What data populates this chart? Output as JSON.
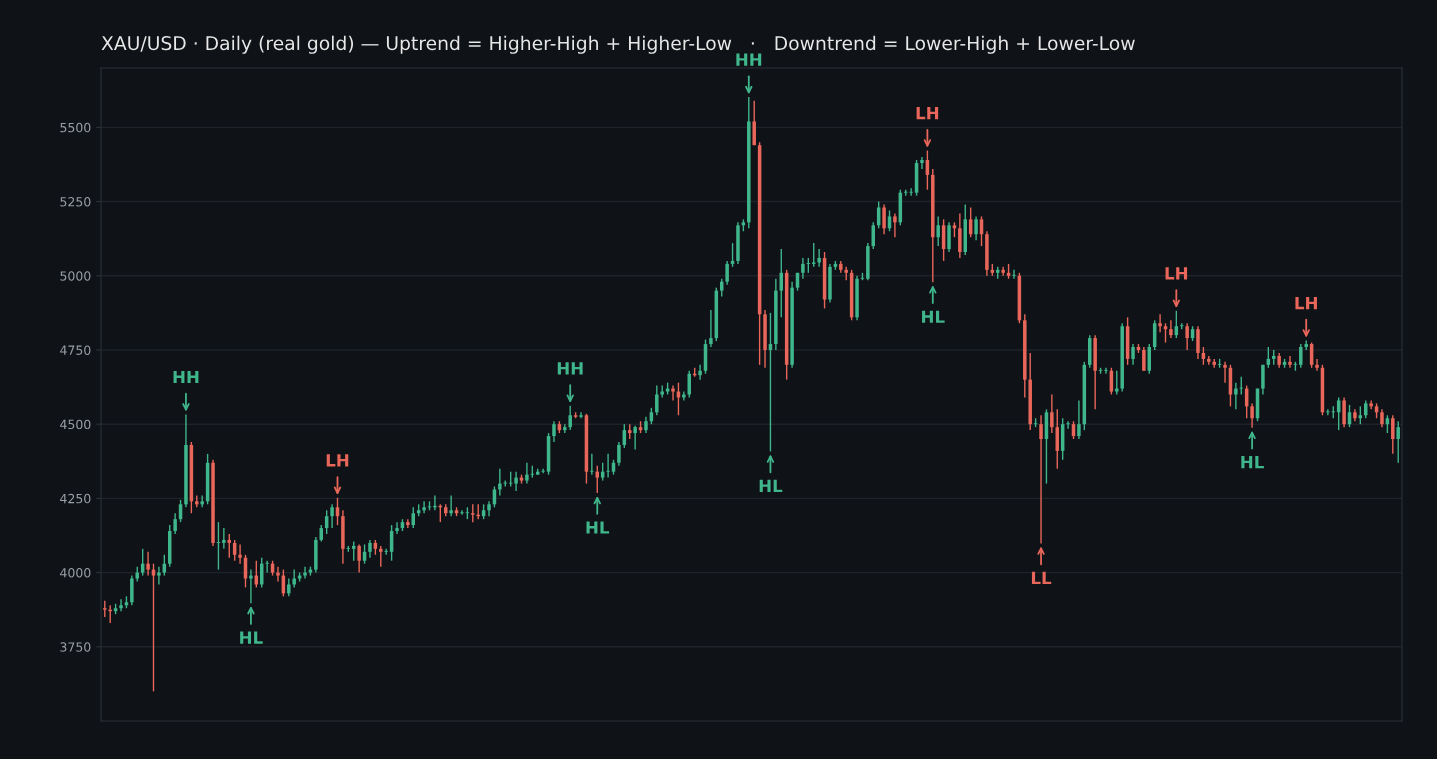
{
  "chart_data": {
    "type": "candlestick",
    "title": "XAU/USD · Daily (real gold) — Uptrend = Higher-High + Higher-Low   ·   Downtrend = Lower-High + Lower-Low",
    "categories": [
      null,
      null,
      null,
      null,
      null,
      null,
      null,
      null,
      null,
      null,
      null,
      null,
      null,
      null,
      null,
      null,
      null,
      null,
      null,
      null,
      null,
      null,
      null,
      null,
      null,
      null,
      null,
      null,
      null,
      null,
      null,
      null,
      null,
      null,
      null,
      null,
      null,
      null,
      null,
      null,
      null,
      null,
      null,
      null,
      null,
      null,
      null,
      null,
      null,
      null,
      null,
      null,
      null,
      null,
      null,
      null,
      null,
      null,
      null,
      null,
      null,
      null,
      null,
      null,
      null,
      null,
      null,
      null,
      null,
      null,
      null,
      null,
      null,
      null,
      null,
      null,
      null,
      null,
      null,
      null,
      null,
      null,
      null,
      null,
      null,
      null,
      null,
      null,
      null,
      null,
      null,
      null,
      null,
      null,
      null,
      null,
      null,
      null,
      null,
      null,
      null,
      null,
      null,
      null,
      null,
      null,
      null,
      null,
      null,
      null,
      null,
      null,
      null,
      null,
      null,
      null,
      null,
      null,
      null,
      null,
      null,
      null,
      null,
      null,
      null,
      null,
      null,
      null,
      null,
      null,
      null,
      null,
      null,
      null,
      null,
      null,
      null,
      null,
      null,
      null,
      null,
      null,
      null,
      null,
      null,
      null,
      null,
      null,
      null,
      null,
      null,
      null,
      null,
      null,
      null,
      null,
      null,
      null,
      null,
      null,
      null,
      null,
      null,
      null,
      null,
      null,
      null,
      null,
      null,
      null,
      null,
      null,
      null,
      null,
      null,
      null,
      null,
      null,
      null,
      null,
      null,
      null,
      null,
      null,
      null,
      null,
      null,
      null,
      null,
      null,
      null,
      null,
      null,
      null,
      null,
      null,
      null,
      null,
      null,
      null,
      null,
      null,
      null,
      null,
      null,
      null,
      null,
      null,
      null,
      null,
      null,
      null,
      null,
      null,
      null,
      null,
      null,
      null,
      null,
      null,
      null,
      null,
      null,
      null,
      null,
      null,
      null,
      null,
      null,
      null,
      null,
      null,
      null,
      null,
      null,
      null,
      null,
      null,
      null,
      null
    ],
    "ohlc": [
      [
        3880,
        3905,
        3850,
        3875
      ],
      [
        3875,
        3890,
        3830,
        3870
      ],
      [
        3870,
        3895,
        3860,
        3880
      ],
      [
        3880,
        3910,
        3870,
        3890
      ],
      [
        3890,
        3920,
        3880,
        3900
      ],
      [
        3900,
        3990,
        3890,
        3980
      ],
      [
        3980,
        4020,
        3970,
        4000
      ],
      [
        4000,
        4080,
        3990,
        4030
      ],
      [
        4030,
        4070,
        3990,
        4010
      ],
      [
        4010,
        4030,
        3600,
        3990
      ],
      [
        3990,
        4020,
        3960,
        4000
      ],
      [
        4000,
        4060,
        3990,
        4030
      ],
      [
        4030,
        4160,
        4020,
        4140
      ],
      [
        4140,
        4200,
        4130,
        4180
      ],
      [
        4180,
        4245,
        4170,
        4230
      ],
      [
        4230,
        4533,
        4220,
        4430
      ],
      [
        4430,
        4440,
        4200,
        4240
      ],
      [
        4240,
        4260,
        4220,
        4230
      ],
      [
        4230,
        4260,
        4220,
        4240
      ],
      [
        4240,
        4400,
        4230,
        4370
      ],
      [
        4370,
        4380,
        4090,
        4100
      ],
      [
        4100,
        4170,
        4010,
        4100
      ],
      [
        4100,
        4150,
        4080,
        4110
      ],
      [
        4110,
        4130,
        4050,
        4100
      ],
      [
        4100,
        4110,
        4040,
        4060
      ],
      [
        4060,
        4095,
        4030,
        4050
      ],
      [
        4050,
        4060,
        3950,
        3980
      ],
      [
        3980,
        4010,
        3897,
        3990
      ],
      [
        3990,
        4040,
        3950,
        3960
      ],
      [
        3960,
        4050,
        3950,
        4030
      ],
      [
        4030,
        4040,
        4000,
        4030
      ],
      [
        4030,
        4040,
        3990,
        4000
      ],
      [
        4000,
        4020,
        3970,
        3990
      ],
      [
        3990,
        4010,
        3920,
        3930
      ],
      [
        3930,
        3980,
        3920,
        3960
      ],
      [
        3960,
        4010,
        3950,
        3980
      ],
      [
        3980,
        4000,
        3970,
        3990
      ],
      [
        3990,
        4020,
        3980,
        4000
      ],
      [
        4000,
        4020,
        3990,
        4010
      ],
      [
        4010,
        4120,
        4000,
        4110
      ],
      [
        4110,
        4160,
        4105,
        4150
      ],
      [
        4150,
        4210,
        4130,
        4190
      ],
      [
        4190,
        4230,
        4150,
        4220
      ],
      [
        4220,
        4252,
        4160,
        4190
      ],
      [
        4190,
        4210,
        4030,
        4080
      ],
      [
        4080,
        4090,
        4070,
        4080
      ],
      [
        4080,
        4105,
        4040,
        4090
      ],
      [
        4090,
        4095,
        4000,
        4040
      ],
      [
        4040,
        4095,
        4030,
        4070
      ],
      [
        4070,
        4110,
        4050,
        4100
      ],
      [
        4100,
        4110,
        4060,
        4080
      ],
      [
        4080,
        4090,
        4020,
        4070
      ],
      [
        4070,
        4080,
        4060,
        4070
      ],
      [
        4070,
        4160,
        4040,
        4140
      ],
      [
        4140,
        4170,
        4130,
        4150
      ],
      [
        4150,
        4180,
        4140,
        4170
      ],
      [
        4170,
        4180,
        4150,
        4160
      ],
      [
        4160,
        4220,
        4150,
        4200
      ],
      [
        4200,
        4230,
        4190,
        4210
      ],
      [
        4210,
        4240,
        4200,
        4220
      ],
      [
        4220,
        4240,
        4210,
        4220
      ],
      [
        4220,
        4260,
        4210,
        4225
      ],
      [
        4225,
        4230,
        4170,
        4220
      ],
      [
        4220,
        4230,
        4190,
        4200
      ],
      [
        4200,
        4260,
        4190,
        4210
      ],
      [
        4210,
        4220,
        4190,
        4200
      ],
      [
        4200,
        4210,
        4195,
        4200
      ],
      [
        4200,
        4220,
        4180,
        4200
      ],
      [
        4200,
        4230,
        4170,
        4195
      ],
      [
        4195,
        4230,
        4180,
        4190
      ],
      [
        4190,
        4230,
        4180,
        4210
      ],
      [
        4210,
        4240,
        4190,
        4230
      ],
      [
        4230,
        4290,
        4220,
        4280
      ],
      [
        4280,
        4350,
        4260,
        4300
      ],
      [
        4300,
        4310,
        4290,
        4300
      ],
      [
        4300,
        4340,
        4290,
        4300
      ],
      [
        4300,
        4340,
        4275,
        4320
      ],
      [
        4320,
        4330,
        4300,
        4310
      ],
      [
        4310,
        4370,
        4300,
        4330
      ],
      [
        4330,
        4360,
        4320,
        4330
      ],
      [
        4330,
        4350,
        4330,
        4340
      ],
      [
        4340,
        4350,
        4335,
        4340
      ],
      [
        4340,
        4470,
        4330,
        4460
      ],
      [
        4460,
        4510,
        4440,
        4500
      ],
      [
        4500,
        4510,
        4470,
        4480
      ],
      [
        4480,
        4500,
        4470,
        4490
      ],
      [
        4490,
        4562,
        4480,
        4530
      ],
      [
        4530,
        4540,
        4520,
        4525
      ],
      [
        4525,
        4540,
        4520,
        4530
      ],
      [
        4530,
        4535,
        4300,
        4340
      ],
      [
        4340,
        4400,
        4330,
        4340
      ],
      [
        4340,
        4360,
        4268,
        4320
      ],
      [
        4320,
        4370,
        4310,
        4340
      ],
      [
        4340,
        4400,
        4320,
        4340
      ],
      [
        4340,
        4380,
        4330,
        4370
      ],
      [
        4370,
        4440,
        4360,
        4430
      ],
      [
        4430,
        4500,
        4420,
        4480
      ],
      [
        4480,
        4500,
        4450,
        4470
      ],
      [
        4470,
        4495,
        4415,
        4490
      ],
      [
        4490,
        4510,
        4470,
        4480
      ],
      [
        4480,
        4525,
        4470,
        4510
      ],
      [
        4510,
        4555,
        4500,
        4540
      ],
      [
        4540,
        4630,
        4530,
        4600
      ],
      [
        4600,
        4630,
        4590,
        4610
      ],
      [
        4610,
        4640,
        4600,
        4620
      ],
      [
        4620,
        4630,
        4580,
        4610
      ],
      [
        4610,
        4640,
        4530,
        4590
      ],
      [
        4590,
        4610,
        4580,
        4600
      ],
      [
        4600,
        4680,
        4590,
        4670
      ],
      [
        4670,
        4690,
        4660,
        4665
      ],
      [
        4665,
        4700,
        4650,
        4680
      ],
      [
        4680,
        4785,
        4670,
        4770
      ],
      [
        4770,
        4885,
        4760,
        4790
      ],
      [
        4790,
        4960,
        4780,
        4950
      ],
      [
        4950,
        4990,
        4930,
        4980
      ],
      [
        4980,
        5050,
        4970,
        5040
      ],
      [
        5040,
        5110,
        5030,
        5050
      ],
      [
        5050,
        5180,
        5040,
        5170
      ],
      [
        5170,
        5190,
        5150,
        5180
      ],
      [
        5180,
        5602,
        5160,
        5520
      ],
      [
        5520,
        5590,
        5440,
        5440
      ],
      [
        5440,
        5450,
        4700,
        4870
      ],
      [
        4870,
        4885,
        4690,
        4750
      ],
      [
        4750,
        4875,
        4408,
        4770
      ],
      [
        4770,
        4990,
        4750,
        4950
      ],
      [
        4950,
        5090,
        4860,
        5010
      ],
      [
        5010,
        5020,
        4650,
        4700
      ],
      [
        4700,
        4980,
        4690,
        4960
      ],
      [
        4960,
        5010,
        4950,
        5010
      ],
      [
        5010,
        5060,
        4990,
        5040
      ],
      [
        5040,
        5060,
        5010,
        5040
      ],
      [
        5040,
        5110,
        5030,
        5045
      ],
      [
        5045,
        5090,
        5030,
        5060
      ],
      [
        5060,
        5080,
        4890,
        4920
      ],
      [
        4920,
        5040,
        4910,
        5030
      ],
      [
        5030,
        5050,
        5020,
        5040
      ],
      [
        5040,
        5050,
        5010,
        5020
      ],
      [
        5020,
        5030,
        4985,
        5010
      ],
      [
        5010,
        5020,
        4850,
        4860
      ],
      [
        4860,
        5000,
        4850,
        4990
      ],
      [
        4990,
        5010,
        4985,
        4990
      ],
      [
        4990,
        5110,
        4985,
        5100
      ],
      [
        5100,
        5180,
        5090,
        5170
      ],
      [
        5170,
        5250,
        5160,
        5230
      ],
      [
        5230,
        5240,
        5140,
        5160
      ],
      [
        5160,
        5220,
        5150,
        5200
      ],
      [
        5200,
        5210,
        5130,
        5180
      ],
      [
        5180,
        5290,
        5170,
        5280
      ],
      [
        5280,
        5290,
        5270,
        5280
      ],
      [
        5280,
        5295,
        5270,
        5280
      ],
      [
        5280,
        5390,
        5270,
        5380
      ],
      [
        5380,
        5400,
        5360,
        5390
      ],
      [
        5390,
        5422,
        5290,
        5340
      ],
      [
        5340,
        5360,
        4978,
        5130
      ],
      [
        5130,
        5200,
        5100,
        5170
      ],
      [
        5170,
        5190,
        5050,
        5090
      ],
      [
        5090,
        5180,
        5080,
        5170
      ],
      [
        5170,
        5180,
        5130,
        5160
      ],
      [
        5160,
        5210,
        5060,
        5080
      ],
      [
        5080,
        5240,
        5070,
        5190
      ],
      [
        5190,
        5230,
        5130,
        5140
      ],
      [
        5140,
        5200,
        5120,
        5190
      ],
      [
        5190,
        5200,
        5100,
        5140
      ],
      [
        5140,
        5150,
        5000,
        5020
      ],
      [
        5020,
        5040,
        5000,
        5010
      ],
      [
        5010,
        5030,
        4990,
        5020
      ],
      [
        5020,
        5030,
        5000,
        5010
      ],
      [
        5010,
        5040,
        4990,
        5000
      ],
      [
        5000,
        5020,
        4990,
        5000
      ],
      [
        5000,
        5010,
        4840,
        4850
      ],
      [
        4850,
        4870,
        4590,
        4650
      ],
      [
        4650,
        4740,
        4480,
        4500
      ],
      [
        4500,
        4520,
        4490,
        4500
      ],
      [
        4500,
        4530,
        4098,
        4450
      ],
      [
        4450,
        4550,
        4300,
        4540
      ],
      [
        4540,
        4600,
        4470,
        4490
      ],
      [
        4490,
        4550,
        4350,
        4410
      ],
      [
        4410,
        4520,
        4380,
        4500
      ],
      [
        4500,
        4510,
        4485,
        4500
      ],
      [
        4500,
        4510,
        4450,
        4460
      ],
      [
        4460,
        4580,
        4450,
        4500
      ],
      [
        4500,
        4710,
        4480,
        4700
      ],
      [
        4700,
        4800,
        4690,
        4790
      ],
      [
        4790,
        4800,
        4550,
        4680
      ],
      [
        4680,
        4690,
        4670,
        4680
      ],
      [
        4680,
        4690,
        4670,
        4680
      ],
      [
        4680,
        4690,
        4600,
        4610
      ],
      [
        4610,
        4680,
        4600,
        4620
      ],
      [
        4620,
        4840,
        4610,
        4830
      ],
      [
        4830,
        4860,
        4700,
        4720
      ],
      [
        4720,
        4770,
        4700,
        4760
      ],
      [
        4760,
        4770,
        4740,
        4750
      ],
      [
        4750,
        4760,
        4680,
        4680
      ],
      [
        4680,
        4770,
        4670,
        4760
      ],
      [
        4760,
        4850,
        4750,
        4840
      ],
      [
        4840,
        4870,
        4810,
        4830
      ],
      [
        4830,
        4840,
        4775,
        4820
      ],
      [
        4820,
        4850,
        4790,
        4800
      ],
      [
        4800,
        4882,
        4790,
        4830
      ],
      [
        4830,
        4840,
        4820,
        4830
      ],
      [
        4830,
        4840,
        4750,
        4790
      ],
      [
        4790,
        4830,
        4780,
        4820
      ],
      [
        4820,
        4830,
        4720,
        4740
      ],
      [
        4740,
        4760,
        4700,
        4720
      ],
      [
        4720,
        4730,
        4700,
        4710
      ],
      [
        4710,
        4720,
        4690,
        4700
      ],
      [
        4700,
        4720,
        4690,
        4700
      ],
      [
        4700,
        4710,
        4640,
        4690
      ],
      [
        4690,
        4700,
        4560,
        4600
      ],
      [
        4600,
        4640,
        4550,
        4620
      ],
      [
        4620,
        4660,
        4600,
        4620
      ],
      [
        4620,
        4630,
        4520,
        4560
      ],
      [
        4560,
        4570,
        4488,
        4520
      ],
      [
        4520,
        4620,
        4510,
        4620
      ],
      [
        4620,
        4700,
        4600,
        4700
      ],
      [
        4700,
        4760,
        4690,
        4720
      ],
      [
        4720,
        4750,
        4700,
        4730
      ],
      [
        4730,
        4740,
        4690,
        4700
      ],
      [
        4700,
        4720,
        4690,
        4710
      ],
      [
        4710,
        4730,
        4690,
        4700
      ],
      [
        4700,
        4710,
        4680,
        4700
      ],
      [
        4700,
        4770,
        4690,
        4760
      ],
      [
        4760,
        4782,
        4750,
        4770
      ],
      [
        4770,
        4775,
        4690,
        4700
      ],
      [
        4700,
        4720,
        4680,
        4690
      ],
      [
        4690,
        4700,
        4530,
        4540
      ],
      [
        4540,
        4550,
        4530,
        4540
      ],
      [
        4540,
        4560,
        4520,
        4540
      ],
      [
        4540,
        4590,
        4480,
        4580
      ],
      [
        4580,
        4590,
        4490,
        4500
      ],
      [
        4500,
        4565,
        4490,
        4540
      ],
      [
        4540,
        4550,
        4510,
        4520
      ],
      [
        4520,
        4560,
        4500,
        4530
      ],
      [
        4530,
        4580,
        4520,
        4570
      ],
      [
        4570,
        4580,
        4550,
        4560
      ],
      [
        4560,
        4570,
        4520,
        4540
      ],
      [
        4540,
        4550,
        4490,
        4500
      ],
      [
        4500,
        4530,
        4470,
        4520
      ],
      [
        4520,
        4530,
        4400,
        4450
      ],
      [
        4450,
        4510,
        4370,
        4490
      ]
    ],
    "colors": [
      "#e9675a",
      "#e9675a",
      "#3fb68b",
      "#3fb68b",
      "#3fb68b",
      "#3fb68b",
      "#3fb68b",
      "#3fb68b",
      "#e9675a",
      "#e9675a",
      "#3fb68b",
      "#3fb68b",
      "#3fb68b",
      "#3fb68b",
      "#3fb68b",
      "#3fb68b",
      "#e9675a",
      "#e9675a",
      "#3fb68b",
      "#3fb68b",
      "#e9675a",
      "#3fb68b",
      "#3fb68b",
      "#e9675a",
      "#e9675a",
      "#e9675a",
      "#e9675a",
      "#3fb68b",
      "#e9675a",
      "#3fb68b",
      "#3fb68b",
      "#e9675a",
      "#e9675a",
      "#e9675a",
      "#3fb68b",
      "#3fb68b",
      "#3fb68b",
      "#3fb68b",
      "#3fb68b",
      "#3fb68b",
      "#3fb68b",
      "#3fb68b",
      "#3fb68b",
      "#e9675a",
      "#e9675a",
      "#3fb68b",
      "#3fb68b",
      "#e9675a",
      "#3fb68b",
      "#3fb68b",
      "#e9675a",
      "#e9675a",
      "#3fb68b",
      "#3fb68b",
      "#3fb68b",
      "#3fb68b",
      "#e9675a",
      "#3fb68b",
      "#3fb68b",
      "#3fb68b",
      "#3fb68b",
      "#3fb68b",
      "#e9675a",
      "#e9675a",
      "#3fb68b",
      "#e9675a",
      "#3fb68b",
      "#3fb68b",
      "#e9675a",
      "#e9675a",
      "#3fb68b",
      "#3fb68b",
      "#3fb68b",
      "#3fb68b",
      "#3fb68b",
      "#3fb68b",
      "#3fb68b",
      "#e9675a",
      "#3fb68b",
      "#3fb68b",
      "#3fb68b",
      "#3fb68b",
      "#3fb68b",
      "#3fb68b",
      "#e9675a",
      "#3fb68b",
      "#3fb68b",
      "#e9675a",
      "#3fb68b",
      "#e9675a",
      "#3fb68b",
      "#e9675a",
      "#3fb68b",
      "#3fb68b",
      "#3fb68b",
      "#3fb68b",
      "#3fb68b",
      "#e9675a",
      "#3fb68b",
      "#e9675a",
      "#3fb68b",
      "#3fb68b",
      "#3fb68b",
      "#3fb68b",
      "#3fb68b",
      "#e9675a",
      "#e9675a",
      "#3fb68b",
      "#3fb68b",
      "#e9675a",
      "#3fb68b",
      "#3fb68b",
      "#3fb68b",
      "#3fb68b",
      "#3fb68b",
      "#3fb68b",
      "#3fb68b",
      "#3fb68b",
      "#3fb68b",
      "#3fb68b",
      "#e9675a",
      "#e9675a",
      "#e9675a",
      "#3fb68b",
      "#3fb68b",
      "#3fb68b",
      "#e9675a",
      "#3fb68b",
      "#3fb68b",
      "#3fb68b",
      "#3fb68b",
      "#3fb68b",
      "#3fb68b",
      "#e9675a",
      "#3fb68b",
      "#3fb68b",
      "#e9675a",
      "#e9675a",
      "#e9675a",
      "#3fb68b",
      "#3fb68b",
      "#3fb68b",
      "#3fb68b",
      "#3fb68b",
      "#e9675a",
      "#3fb68b",
      "#e9675a",
      "#3fb68b",
      "#3fb68b",
      "#3fb68b",
      "#3fb68b",
      "#3fb68b",
      "#e9675a",
      "#e9675a",
      "#3fb68b",
      "#e9675a",
      "#3fb68b",
      "#e9675a",
      "#e9675a",
      "#3fb68b",
      "#e9675a",
      "#3fb68b",
      "#e9675a",
      "#e9675a",
      "#e9675a",
      "#3fb68b",
      "#e9675a",
      "#e9675a",
      "#3fb68b",
      "#e9675a",
      "#e9675a",
      "#e9675a",
      "#3fb68b",
      "#e9675a",
      "#3fb68b",
      "#e9675a",
      "#e9675a",
      "#3fb68b",
      "#3fb68b",
      "#e9675a",
      "#3fb68b",
      "#3fb68b",
      "#3fb68b",
      "#e9675a",
      "#3fb68b",
      "#3fb68b",
      "#e9675a",
      "#3fb68b",
      "#3fb68b",
      "#e9675a",
      "#3fb68b",
      "#e9675a",
      "#e9675a",
      "#3fb68b",
      "#3fb68b",
      "#e9675a",
      "#e9675a",
      "#e9675a",
      "#3fb68b",
      "#3fb68b",
      "#e9675a",
      "#3fb68b",
      "#e9675a",
      "#e9675a",
      "#e9675a",
      "#e9675a",
      "#3fb68b",
      "#e9675a",
      "#e9675a",
      "#3fb68b",
      "#3fb68b",
      "#e9675a",
      "#e9675a",
      "#3fb68b",
      "#3fb68b",
      "#3fb68b",
      "#3fb68b",
      "#e9675a",
      "#3fb68b",
      "#e9675a",
      "#3fb68b",
      "#3fb68b",
      "#3fb68b",
      "#e9675a",
      "#e9675a",
      "#e9675a",
      "#3fb68b",
      "#3fb68b",
      "#3fb68b",
      "#e9675a",
      "#3fb68b",
      "#e9675a",
      "#3fb68b",
      "#3fb68b",
      "#e9675a",
      "#e9675a",
      "#e9675a",
      "#3fb68b",
      "#e9675a",
      "#3fb68b"
    ],
    "ylim": [
      3500,
      5700
    ],
    "yticks": [
      3750,
      4000,
      4250,
      4500,
      4750,
      5000,
      5250,
      5500
    ],
    "grid": "y",
    "tick_labels": "y",
    "annotations": [
      {
        "text": "HH",
        "y": 4533
      },
      {
        "text": "HL",
        "y": 3897
      },
      {
        "text": "LH",
        "y": 4252
      },
      {
        "text": "HH",
        "y": 4562
      },
      {
        "text": "HL",
        "y": 4268
      },
      {
        "text": "HH",
        "y": 5602
      },
      {
        "text": "HL",
        "y": 4408
      },
      {
        "text": "LH",
        "y": 5422
      },
      {
        "text": "HL",
        "y": 4978
      },
      {
        "text": "LL",
        "y": 4098
      },
      {
        "text": "LH",
        "y": 4882
      },
      {
        "text": "HL",
        "y": 4488
      },
      {
        "text": "LH",
        "y": 4782
      }
    ]
  }
}
